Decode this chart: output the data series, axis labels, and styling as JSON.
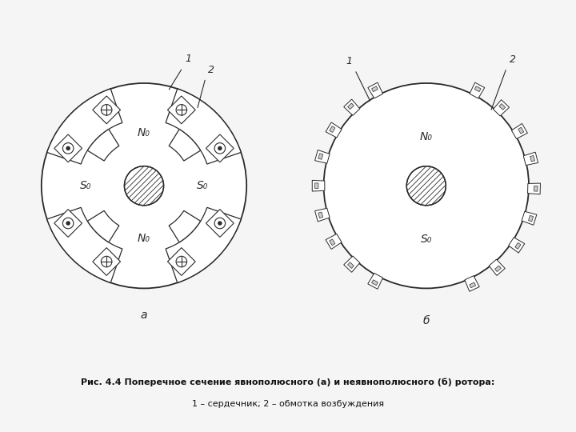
{
  "bg_color": "#f5f5f5",
  "line_color": "#2a2a2a",
  "caption_line1": "Рис. 4.4 Поперечное сечение явнополюсного (а) и неявнополюсного (б) ротора:",
  "caption_line2": "1 – сердечник; 2 – обмотка возбуждения",
  "label_a": "а",
  "label_b": "б",
  "N0": "N₀",
  "S0": "S₀"
}
